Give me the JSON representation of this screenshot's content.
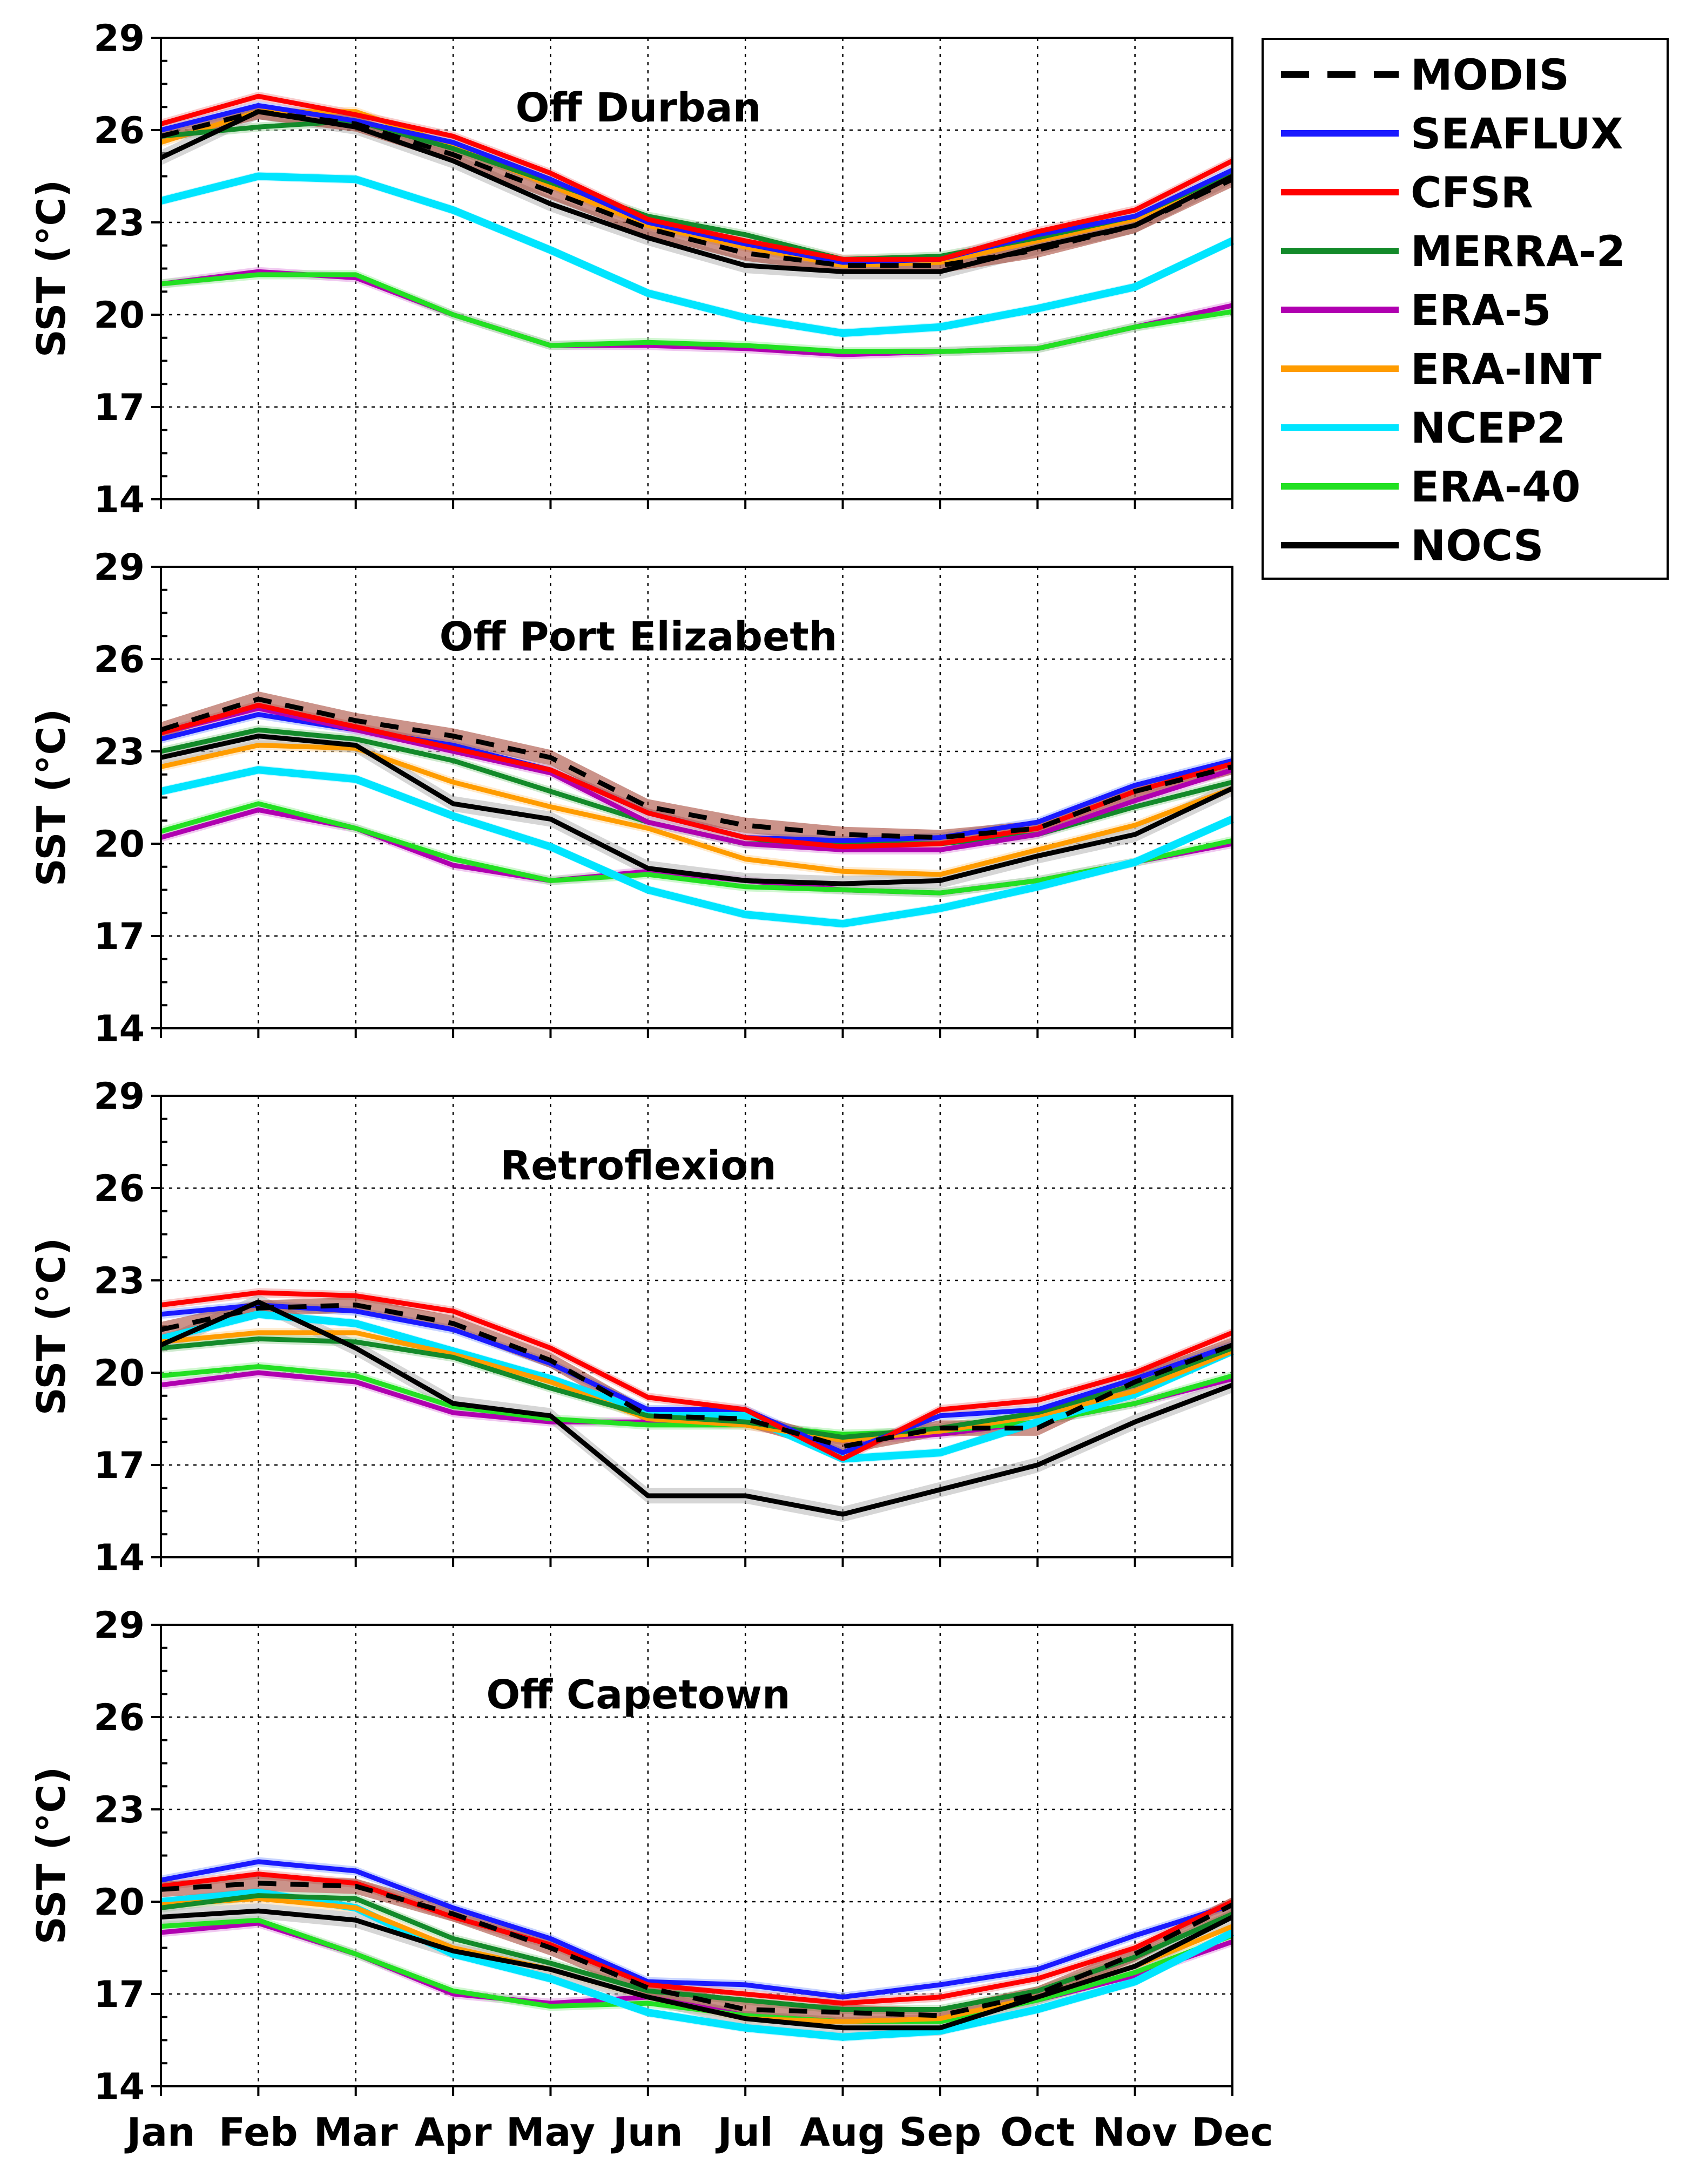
{
  "chart_data": {
    "type": "line",
    "ylabel": "SST (°C)",
    "months": [
      "Jan",
      "Feb",
      "Mar",
      "Apr",
      "May",
      "Jun",
      "Jul",
      "Aug",
      "Sep",
      "Oct",
      "Nov",
      "Dec"
    ],
    "yticks": [
      14,
      17,
      20,
      23,
      26,
      29
    ],
    "ylim": [
      14,
      29
    ],
    "grid": true,
    "legend_position": "top-right",
    "legend": [
      {
        "name": "MODIS",
        "color": "#000000",
        "dashed": true
      },
      {
        "name": "SEAFLUX",
        "color": "#1a1aff",
        "dashed": false
      },
      {
        "name": "CFSR",
        "color": "#ff0000",
        "dashed": false
      },
      {
        "name": "MERRA-2",
        "color": "#138a2a",
        "dashed": false
      },
      {
        "name": "ERA-5",
        "color": "#b000b0",
        "dashed": false
      },
      {
        "name": "ERA-INT",
        "color": "#ff9c00",
        "dashed": false
      },
      {
        "name": "NCEP2",
        "color": "#00e5ff",
        "dashed": false
      },
      {
        "name": "ERA-40",
        "color": "#22e022",
        "dashed": false
      },
      {
        "name": "NOCS",
        "color": "#000000",
        "dashed": false
      }
    ],
    "panels": [
      {
        "title": "Off Durban",
        "series": {
          "ERA-5": [
            21.0,
            21.4,
            21.2,
            20.0,
            19.0,
            19.0,
            18.9,
            18.7,
            18.8,
            18.9,
            19.6,
            20.3
          ],
          "ERA-40": [
            21.0,
            21.3,
            21.3,
            20.0,
            19.0,
            19.1,
            19.0,
            18.8,
            18.8,
            18.9,
            19.6,
            20.1
          ],
          "NCEP2": [
            23.7,
            24.5,
            24.4,
            23.4,
            22.1,
            20.7,
            19.9,
            19.4,
            19.6,
            20.2,
            20.9,
            22.4
          ],
          "SEAFLUX": [
            26.0,
            26.8,
            26.3,
            25.6,
            24.4,
            23.0,
            22.3,
            21.7,
            21.8,
            22.6,
            23.2,
            24.7
          ],
          "ERA-INT": [
            25.6,
            26.6,
            26.6,
            25.5,
            24.2,
            22.9,
            22.2,
            21.6,
            21.7,
            22.4,
            23.1,
            24.6
          ],
          "MERRA-2": [
            25.8,
            26.1,
            26.3,
            25.4,
            24.3,
            23.2,
            22.6,
            21.8,
            21.9,
            22.5,
            23.2,
            24.6
          ],
          "CFSR": [
            26.2,
            27.1,
            26.5,
            25.8,
            24.6,
            23.1,
            22.4,
            21.8,
            21.8,
            22.7,
            23.4,
            25.0
          ],
          "NOCS": [
            25.1,
            26.6,
            26.1,
            25.0,
            23.6,
            22.5,
            21.6,
            21.4,
            21.4,
            22.2,
            22.9,
            24.5
          ],
          "MODIS": [
            25.8,
            26.6,
            26.2,
            25.2,
            24.0,
            22.8,
            22.0,
            21.6,
            21.6,
            22.1,
            22.9,
            24.4
          ]
        }
      },
      {
        "title": "Off Port Elizabeth",
        "series": {
          "ERA-5": [
            20.2,
            21.1,
            20.5,
            19.3,
            18.8,
            19.1,
            18.8,
            18.5,
            18.4,
            18.8,
            19.4,
            20.0
          ],
          "ERA-40": [
            20.4,
            21.3,
            20.5,
            19.5,
            18.8,
            19.0,
            18.6,
            18.5,
            18.4,
            18.8,
            19.4,
            20.1
          ],
          "NCEP2": [
            21.7,
            22.4,
            22.1,
            20.9,
            19.9,
            18.5,
            17.7,
            17.4,
            17.9,
            18.6,
            19.4,
            20.8
          ],
          "ERA-INT": [
            22.5,
            23.2,
            23.1,
            22.0,
            21.2,
            20.5,
            19.5,
            19.1,
            19.0,
            19.8,
            20.6,
            21.8
          ],
          "NOCS": [
            22.8,
            23.5,
            23.2,
            21.3,
            20.8,
            19.2,
            18.8,
            18.7,
            18.8,
            19.6,
            20.3,
            21.8
          ],
          "MERRA-2": [
            23.0,
            23.7,
            23.4,
            22.7,
            21.7,
            20.7,
            20.0,
            20.0,
            20.0,
            20.3,
            21.2,
            22.0
          ],
          "SEAFLUX": [
            23.4,
            24.2,
            23.7,
            23.2,
            22.4,
            21.0,
            20.2,
            20.1,
            20.2,
            20.7,
            21.9,
            22.7
          ],
          "ERA-5B": [
            23.6,
            24.4,
            23.7,
            23.0,
            22.3,
            20.7,
            20.0,
            19.8,
            19.8,
            20.3,
            21.4,
            22.4
          ],
          "CFSR": [
            23.6,
            24.5,
            23.8,
            23.1,
            22.4,
            21.0,
            20.2,
            19.9,
            20.0,
            20.5,
            21.7,
            22.6
          ],
          "MODIS": [
            23.7,
            24.7,
            24.0,
            23.5,
            22.8,
            21.2,
            20.6,
            20.3,
            20.2,
            20.5,
            21.7,
            22.5
          ]
        }
      },
      {
        "title": "Retroflexion",
        "series": {
          "ERA-5": [
            19.6,
            20.0,
            19.7,
            18.7,
            18.4,
            18.4,
            18.3,
            17.8,
            18.0,
            18.4,
            19.0,
            19.8
          ],
          "ERA-40": [
            19.9,
            20.2,
            19.9,
            18.9,
            18.5,
            18.3,
            18.3,
            18.0,
            18.1,
            18.4,
            19.0,
            19.9
          ],
          "NCEP2": [
            21.1,
            21.9,
            21.6,
            20.7,
            19.8,
            18.7,
            18.6,
            17.2,
            17.4,
            18.4,
            19.3,
            20.7
          ],
          "ERA-INT": [
            21.0,
            21.3,
            21.3,
            20.6,
            19.7,
            18.5,
            18.3,
            17.8,
            18.1,
            18.6,
            19.4,
            20.7
          ],
          "MERRA-2": [
            20.8,
            21.1,
            21.0,
            20.5,
            19.5,
            18.6,
            18.4,
            17.9,
            18.2,
            18.7,
            19.6,
            20.8
          ],
          "SEAFLUX": [
            21.9,
            22.2,
            22.0,
            21.4,
            20.3,
            18.8,
            18.8,
            17.4,
            18.6,
            18.8,
            19.8,
            20.9
          ],
          "CFSR": [
            22.2,
            22.6,
            22.5,
            22.0,
            20.8,
            19.2,
            18.8,
            17.2,
            18.8,
            19.1,
            20.0,
            21.3
          ],
          "NOCS": [
            20.9,
            22.3,
            20.8,
            19.0,
            18.6,
            16.0,
            16.0,
            15.4,
            16.2,
            17.0,
            18.4,
            19.6
          ],
          "MODIS": [
            21.4,
            22.1,
            22.2,
            21.6,
            20.4,
            18.6,
            18.5,
            17.6,
            18.2,
            18.2,
            19.7,
            20.9
          ]
        }
      },
      {
        "title": "Off Capetown",
        "series": {
          "ERA-5": [
            19.0,
            19.3,
            18.3,
            17.0,
            16.7,
            16.9,
            16.3,
            16.1,
            16.2,
            16.8,
            17.6,
            18.7
          ],
          "ERA-40": [
            19.2,
            19.4,
            18.3,
            17.1,
            16.6,
            16.7,
            16.3,
            16.1,
            16.1,
            16.8,
            17.7,
            18.9
          ],
          "NCEP2": [
            20.0,
            20.3,
            19.8,
            18.3,
            17.5,
            16.4,
            15.9,
            15.6,
            15.8,
            16.5,
            17.4,
            19.0
          ],
          "ERA-INT": [
            19.9,
            20.1,
            19.8,
            18.5,
            17.8,
            16.9,
            16.2,
            16.1,
            16.2,
            16.9,
            17.9,
            19.2
          ],
          "NOCS": [
            19.5,
            19.7,
            19.4,
            18.4,
            17.8,
            16.9,
            16.2,
            15.9,
            15.9,
            16.9,
            17.9,
            19.5
          ],
          "MERRA-2": [
            19.8,
            20.2,
            20.1,
            18.8,
            18.0,
            17.1,
            16.8,
            16.5,
            16.5,
            17.1,
            18.2,
            19.6
          ],
          "CFSR": [
            20.5,
            20.9,
            20.6,
            19.5,
            18.6,
            17.3,
            17.0,
            16.7,
            16.9,
            17.5,
            18.5,
            20.0
          ],
          "SEAFLUX": [
            20.7,
            21.3,
            21.0,
            19.8,
            18.8,
            17.4,
            17.3,
            16.9,
            17.3,
            17.8,
            18.9,
            19.9
          ],
          "MODIS": [
            20.4,
            20.6,
            20.5,
            19.6,
            18.5,
            17.2,
            16.5,
            16.4,
            16.3,
            17.0,
            18.3,
            19.9
          ]
        }
      }
    ]
  }
}
